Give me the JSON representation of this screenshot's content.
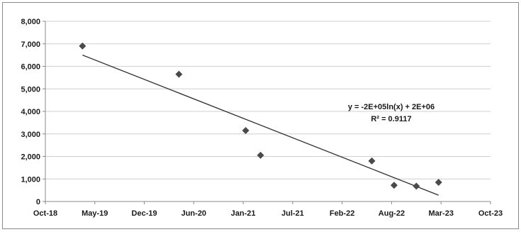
{
  "chart_data": {
    "type": "scatter",
    "xlabel": "",
    "ylabel": "",
    "ylim": [
      0,
      8000
    ],
    "xlim": [
      "2018-10",
      "2023-10"
    ],
    "grid": {
      "x": false,
      "y": true
    },
    "legend": "none",
    "x_ticks": [
      "Oct-18",
      "May-19",
      "Dec-19",
      "Jun-20",
      "Jan-21",
      "Jul-21",
      "Feb-22",
      "Aug-22",
      "Mar-23",
      "Oct-23"
    ],
    "y_ticks": [
      "0",
      "1,000",
      "2,000",
      "3,000",
      "4,000",
      "5,000",
      "6,000",
      "7,000",
      "8,000"
    ],
    "points": [
      {
        "x": "2019-03",
        "y": 6900
      },
      {
        "x": "2020-04",
        "y": 5650
      },
      {
        "x": "2021-01",
        "y": 3150
      },
      {
        "x": "2021-03",
        "y": 2050
      },
      {
        "x": "2022-06",
        "y": 1800
      },
      {
        "x": "2022-09",
        "y": 720
      },
      {
        "x": "2022-12",
        "y": 680
      },
      {
        "x": "2023-03",
        "y": 850
      }
    ],
    "trendline": {
      "type": "logarithmic",
      "start": {
        "x": "2019-03",
        "y": 6500
      },
      "end": {
        "x": "2023-03",
        "y": 280
      },
      "equation": "y = -2E+05ln(x) + 2E+06",
      "r_squared": "R² = 0.9117"
    },
    "colors": {
      "marker": "#4a4a4a",
      "trendline": "#2f2f2f",
      "grid": "#cfcfcf",
      "axis": "#8a8a8a"
    }
  }
}
